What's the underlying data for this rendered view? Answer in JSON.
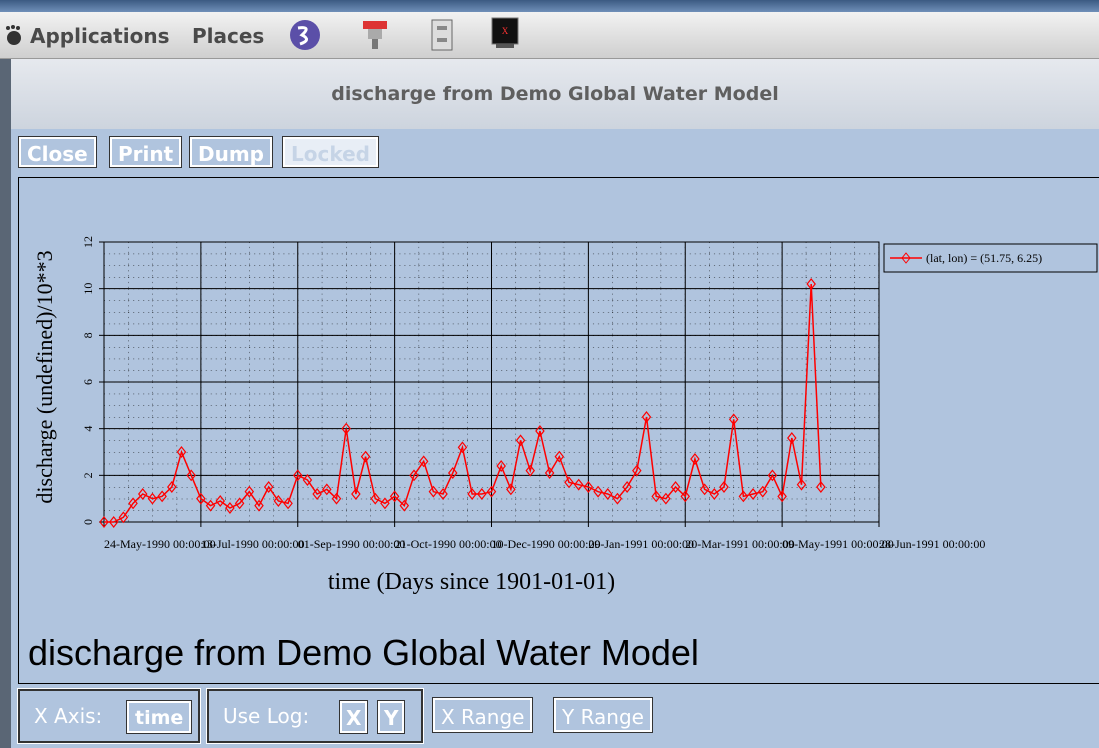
{
  "taskbar": {
    "menus": [
      "Applications",
      "Places"
    ]
  },
  "window": {
    "title": "discharge from Demo Global Water Model",
    "buttons": [
      "Close",
      "Print",
      "Dump",
      "Locked"
    ],
    "controls": {
      "x_axis_label": "X Axis:",
      "x_axis_value": "time",
      "log_label": "Use Log:",
      "log_x": "X",
      "log_y": "Y",
      "x_range": "X Range",
      "y_range": "Y Range"
    }
  },
  "chart_data": {
    "type": "line",
    "title": "discharge from Demo Global Water Model",
    "xlabel": "time (Days since 1901-01-01)",
    "ylabel": "discharge (undefined)/10**3",
    "x": [
      32650,
      32655,
      32660,
      32665,
      32670,
      32675,
      32680,
      32685,
      32690,
      32695,
      32700,
      32705,
      32710,
      32715,
      32720,
      32725,
      32730,
      32735,
      32740,
      32745,
      32750,
      32755,
      32760,
      32765,
      32770,
      32775,
      32780,
      32785,
      32790,
      32795,
      32800,
      32805,
      32810,
      32815,
      32820,
      32825,
      32830,
      32835,
      32840,
      32845,
      32850,
      32855,
      32860,
      32865,
      32870,
      32875,
      32880,
      32885,
      32890,
      32895,
      32900,
      32905,
      32910,
      32915,
      32920,
      32925,
      32930,
      32935,
      32940,
      32945,
      32950,
      32955,
      32960,
      32965,
      32970,
      32975,
      32980,
      32985,
      32990,
      32995,
      33000,
      33005,
      33010,
      33015,
      33020
    ],
    "series": [
      {
        "name": "(lat, lon) = (51.75, 6.25)",
        "color": "#ff0000",
        "values": [
          0,
          0,
          0.2,
          0.8,
          1.2,
          1.0,
          1.1,
          1.5,
          3.0,
          2.0,
          1.0,
          0.7,
          0.9,
          0.6,
          0.8,
          1.3,
          0.7,
          1.5,
          0.9,
          0.8,
          2.0,
          1.8,
          1.2,
          1.4,
          1.0,
          4.0,
          1.2,
          2.8,
          1.0,
          0.8,
          1.1,
          0.7,
          2.0,
          2.6,
          1.3,
          1.2,
          2.1,
          3.2,
          1.2,
          1.2,
          1.3,
          2.4,
          1.4,
          3.5,
          2.2,
          3.9,
          2.1,
          2.8,
          1.7,
          1.6,
          1.5,
          1.3,
          1.2,
          1.0,
          1.5,
          2.2,
          4.5,
          1.1,
          1.0,
          1.5,
          1.1,
          2.7,
          1.4,
          1.2,
          1.5,
          4.4,
          1.1,
          1.2,
          1.3,
          2.0,
          1.1,
          3.6,
          1.6,
          10.2,
          1.5
        ]
      }
    ],
    "xlim": [
      32650,
      33050
    ],
    "xticks": [
      {
        "value": 32650,
        "label": "24-May-1990 00:00:00"
      },
      {
        "value": 32700,
        "label": "13-Jul-1990 00:00:00"
      },
      {
        "value": 32750,
        "label": "01-Sep-1990 00:00:00"
      },
      {
        "value": 32800,
        "label": "21-Oct-1990 00:00:00"
      },
      {
        "value": 32850,
        "label": "10-Dec-1990 00:00:00"
      },
      {
        "value": 32900,
        "label": "29-Jan-1991 00:00:00"
      },
      {
        "value": 32950,
        "label": "20-Mar-1991 00:00:00"
      },
      {
        "value": 33000,
        "label": "09-May-1991 00:00:00"
      },
      {
        "value": 33050,
        "label": "28-Jun-1991 00:00:00"
      }
    ],
    "ylim": [
      0,
      12
    ],
    "yticks": [
      0,
      2,
      4,
      6,
      8,
      10,
      12
    ],
    "grid": true,
    "legend": "outside right"
  }
}
